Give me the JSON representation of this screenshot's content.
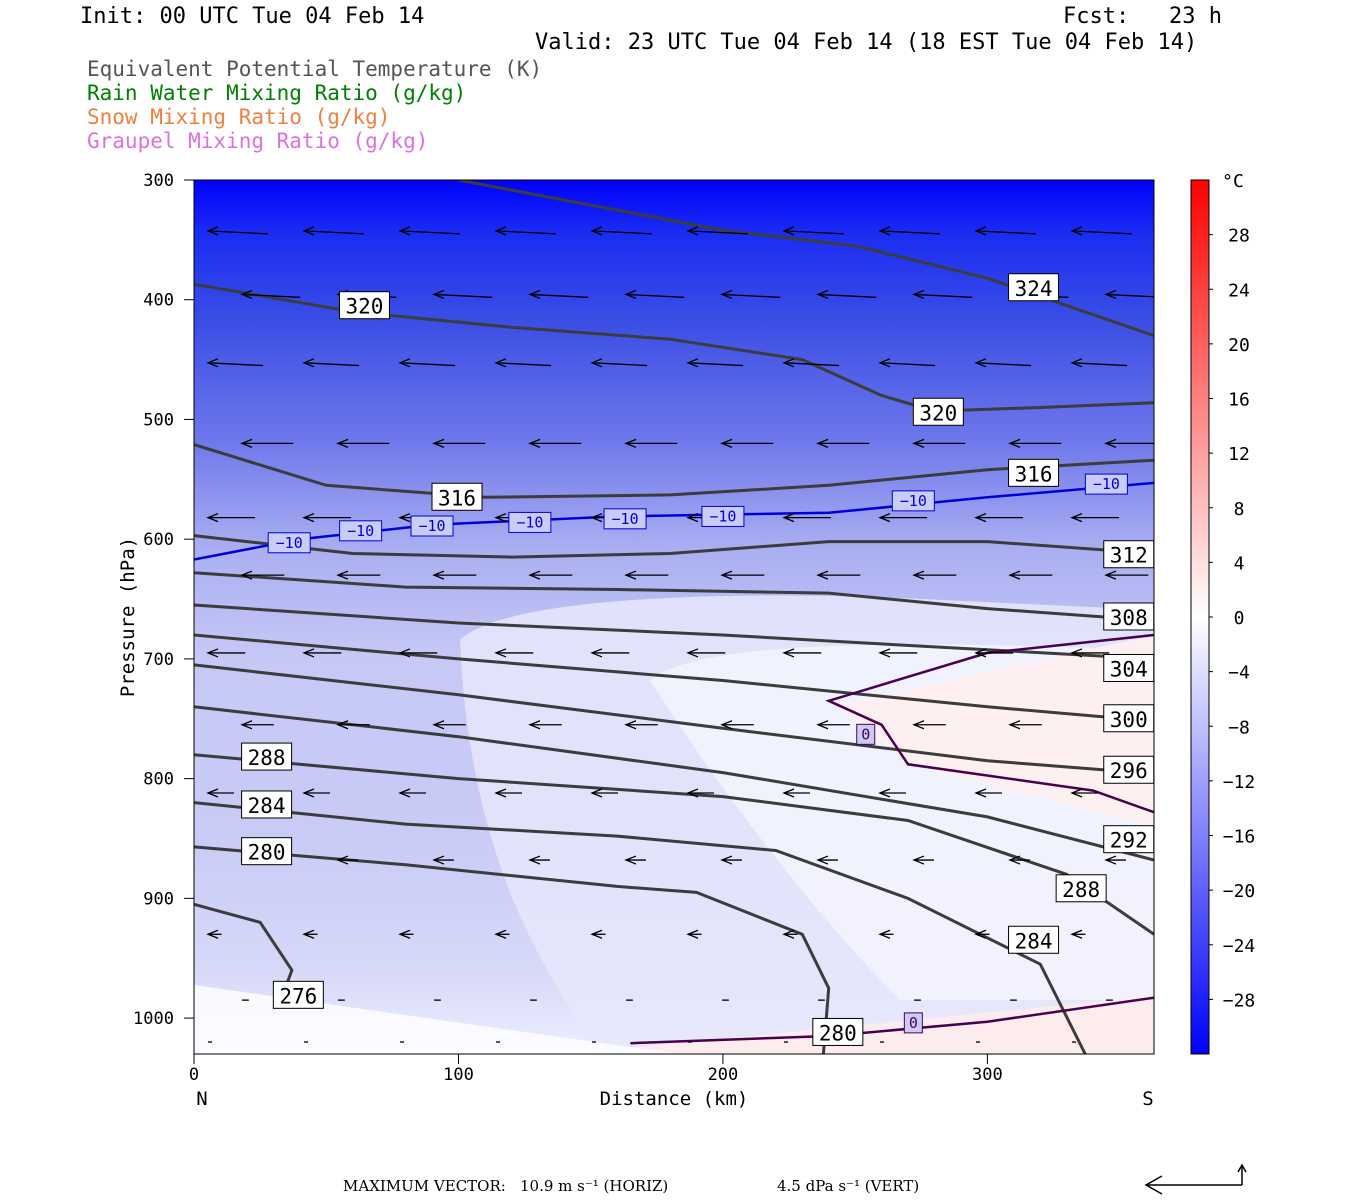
{
  "header": {
    "init": "Init: 00 UTC Tue 04 Feb 14",
    "fcst": "Fcst:   23 h",
    "valid": "Valid: 23 UTC Tue 04 Feb 14 (18 EST Tue 04 Feb 14)"
  },
  "legend": [
    {
      "text": "Equivalent Potential Temperature (K)",
      "color": "#555555"
    },
    {
      "text": "Rain Water Mixing Ratio (g/kg)",
      "color": "#008000"
    },
    {
      "text": "Snow Mixing Ratio (g/kg)",
      "color": "#f08040"
    },
    {
      "text": "Graupel Mixing Ratio (g/kg)",
      "color": "#e070e0"
    }
  ],
  "footer": {
    "max_vector_label": "MAXIMUM VECTOR:",
    "horiz": "10.9 m s⁻¹ (HORIZ)",
    "vert": "4.5 dPa s⁻¹ (VERT)"
  },
  "chart_data": {
    "type": "cross-section contour",
    "xlabel": "Distance (km)",
    "ylabel": "Pressure (hPa)",
    "xlim": [
      0,
      363
    ],
    "ylim": [
      1030,
      300
    ],
    "x_ticks": [
      0,
      100,
      200,
      300
    ],
    "y_ticks": [
      300,
      400,
      500,
      600,
      700,
      800,
      900,
      1000
    ],
    "x_end_labels": {
      "left": "N",
      "right": "S"
    },
    "temperature_fill": {
      "unit": "°C",
      "colorbar_ticks": [
        28,
        24,
        20,
        16,
        12,
        8,
        4,
        0,
        -4,
        -8,
        -12,
        -16,
        -20,
        -24,
        -28
      ],
      "colorbar_range": [
        -32,
        32
      ]
    },
    "theta_e_contours": [
      {
        "label": "324",
        "points": [
          [
            100,
            300
          ],
          [
            200,
            342
          ],
          [
            250,
            355
          ],
          [
            300,
            382
          ],
          [
            363,
            430
          ]
        ]
      },
      {
        "label": "320",
        "points": [
          [
            0,
            387
          ],
          [
            60,
            410
          ],
          [
            120,
            423
          ],
          [
            180,
            433
          ],
          [
            230,
            450
          ],
          [
            260,
            480
          ],
          [
            280,
            493
          ],
          [
            320,
            490
          ],
          [
            363,
            486
          ]
        ]
      },
      {
        "label": "316",
        "points": [
          [
            0,
            521
          ],
          [
            50,
            555
          ],
          [
            110,
            565
          ],
          [
            180,
            563
          ],
          [
            240,
            555
          ],
          [
            300,
            542
          ],
          [
            363,
            534
          ]
        ]
      },
      {
        "label": "312",
        "points": [
          [
            0,
            597
          ],
          [
            60,
            612
          ],
          [
            120,
            615
          ],
          [
            180,
            612
          ],
          [
            240,
            602
          ],
          [
            300,
            602
          ],
          [
            363,
            612
          ]
        ]
      },
      {
        "label": "308",
        "points": [
          [
            0,
            628
          ],
          [
            80,
            640
          ],
          [
            160,
            642
          ],
          [
            240,
            645
          ],
          [
            300,
            658
          ],
          [
            363,
            668
          ]
        ]
      },
      {
        "label": "304",
        "points": [
          [
            0,
            655
          ],
          [
            100,
            670
          ],
          [
            200,
            680
          ],
          [
            280,
            690
          ],
          [
            363,
            700
          ]
        ]
      },
      {
        "label": "300",
        "points": [
          [
            0,
            680
          ],
          [
            100,
            700
          ],
          [
            200,
            718
          ],
          [
            300,
            740
          ],
          [
            363,
            752
          ]
        ]
      },
      {
        "label": "296",
        "points": [
          [
            0,
            705
          ],
          [
            100,
            730
          ],
          [
            200,
            758
          ],
          [
            300,
            785
          ],
          [
            363,
            796
          ]
        ]
      },
      {
        "label": "292",
        "points": [
          [
            0,
            740
          ],
          [
            100,
            765
          ],
          [
            200,
            795
          ],
          [
            300,
            832
          ],
          [
            363,
            868
          ]
        ]
      },
      {
        "label": "288",
        "points": [
          [
            0,
            780
          ],
          [
            100,
            800
          ],
          [
            200,
            815
          ],
          [
            270,
            835
          ],
          [
            330,
            880
          ],
          [
            363,
            930
          ]
        ]
      },
      {
        "label": "284",
        "points": [
          [
            0,
            820
          ],
          [
            80,
            838
          ],
          [
            160,
            848
          ],
          [
            220,
            860
          ],
          [
            270,
            900
          ],
          [
            320,
            955
          ],
          [
            337,
            1030
          ]
        ]
      },
      {
        "label": "280",
        "points": [
          [
            0,
            857
          ],
          [
            80,
            872
          ],
          [
            160,
            890
          ],
          [
            190,
            895
          ],
          [
            230,
            930
          ],
          [
            240,
            975
          ],
          [
            238,
            1030
          ]
        ]
      },
      {
        "label": "276",
        "points": [
          [
            0,
            905
          ],
          [
            25,
            920
          ],
          [
            37,
            960
          ],
          [
            32,
            990
          ]
        ]
      }
    ],
    "theta_e_labels": [
      {
        "text": "324",
        "x": 308,
        "p": 390
      },
      {
        "text": "320",
        "x": 55,
        "p": 405
      },
      {
        "text": "320",
        "x": 272,
        "p": 494
      },
      {
        "text": "316",
        "x": 90,
        "p": 565
      },
      {
        "text": "316",
        "x": 308,
        "p": 545
      },
      {
        "text": "312",
        "x": 344,
        "p": 613
      },
      {
        "text": "308",
        "x": 344,
        "p": 665
      },
      {
        "text": "304",
        "x": 344,
        "p": 708
      },
      {
        "text": "300",
        "x": 344,
        "p": 750
      },
      {
        "text": "296",
        "x": 344,
        "p": 793
      },
      {
        "text": "292",
        "x": 344,
        "p": 851
      },
      {
        "text": "288",
        "x": 18,
        "p": 782
      },
      {
        "text": "288",
        "x": 326,
        "p": 892
      },
      {
        "text": "284",
        "x": 18,
        "p": 822
      },
      {
        "text": "284",
        "x": 308,
        "p": 935
      },
      {
        "text": "280",
        "x": 18,
        "p": 861
      },
      {
        "text": "280",
        "x": 234,
        "p": 1012
      },
      {
        "text": "276",
        "x": 30,
        "p": 981
      }
    ],
    "isotherms": [
      {
        "label": "-10",
        "color": "#0000dd",
        "points": [
          [
            0,
            617
          ],
          [
            40,
            600
          ],
          [
            90,
            588
          ],
          [
            160,
            581
          ],
          [
            240,
            578
          ],
          [
            300,
            565
          ],
          [
            363,
            553
          ]
        ],
        "labels": [
          {
            "x": 36,
            "p": 603
          },
          {
            "x": 63,
            "p": 593
          },
          {
            "x": 90,
            "p": 589
          },
          {
            "x": 127,
            "p": 586
          },
          {
            "x": 163,
            "p": 583
          },
          {
            "x": 200,
            "p": 581
          },
          {
            "x": 272,
            "p": 568
          },
          {
            "x": 345,
            "p": 554
          }
        ]
      },
      {
        "label": "0",
        "color": "#4a0050",
        "points": [
          [
            363,
            680
          ],
          [
            300,
            695
          ],
          [
            240,
            735
          ],
          [
            260,
            755
          ],
          [
            270,
            788
          ],
          [
            340,
            810
          ],
          [
            363,
            828
          ]
        ],
        "labels": [
          {
            "x": 254,
            "p": 763
          }
        ]
      },
      {
        "label": "0",
        "color": "#4a0050",
        "points": [
          [
            165,
            1021
          ],
          [
            240,
            1015
          ],
          [
            300,
            1003
          ],
          [
            363,
            983
          ]
        ],
        "labels": [
          {
            "x": 272,
            "p": 1004
          }
        ]
      }
    ],
    "wind_rows_p": [
      345,
      398,
      455,
      520,
      582,
      630,
      695,
      755,
      812,
      868,
      930,
      985,
      1020
    ]
  }
}
